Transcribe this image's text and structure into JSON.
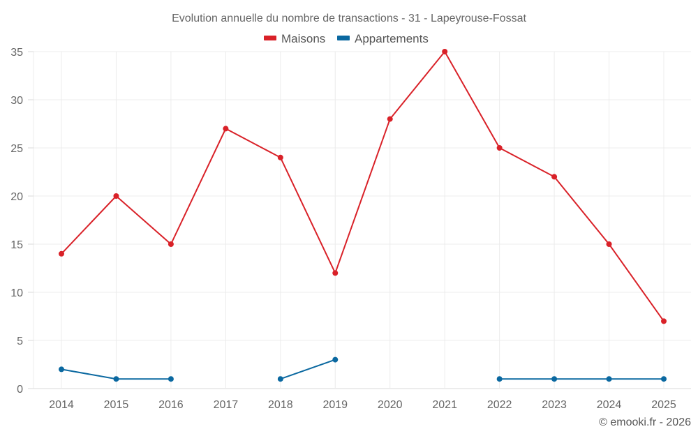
{
  "chart_data": {
    "type": "line",
    "title": "Evolution annuelle du nombre de transactions - 31 - Lapeyrouse-Fossat",
    "categories": [
      "2014",
      "2015",
      "2016",
      "2017",
      "2018",
      "2019",
      "2020",
      "2021",
      "2022",
      "2023",
      "2024",
      "2025"
    ],
    "series": [
      {
        "name": "Maisons",
        "color": "#d92128",
        "values": [
          14,
          20,
          15,
          27,
          24,
          12,
          28,
          35,
          25,
          22,
          15,
          7
        ]
      },
      {
        "name": "Appartements",
        "color": "#0a68a0",
        "values": [
          2,
          1,
          1,
          null,
          1,
          3,
          null,
          null,
          1,
          1,
          1,
          1
        ]
      }
    ],
    "ylim": [
      0,
      35
    ],
    "yticks": [
      "0",
      "5",
      "10",
      "15",
      "20",
      "25",
      "30",
      "35"
    ],
    "grid": true,
    "legend": "top-center",
    "credit": "© emooki.fr - 2026"
  }
}
